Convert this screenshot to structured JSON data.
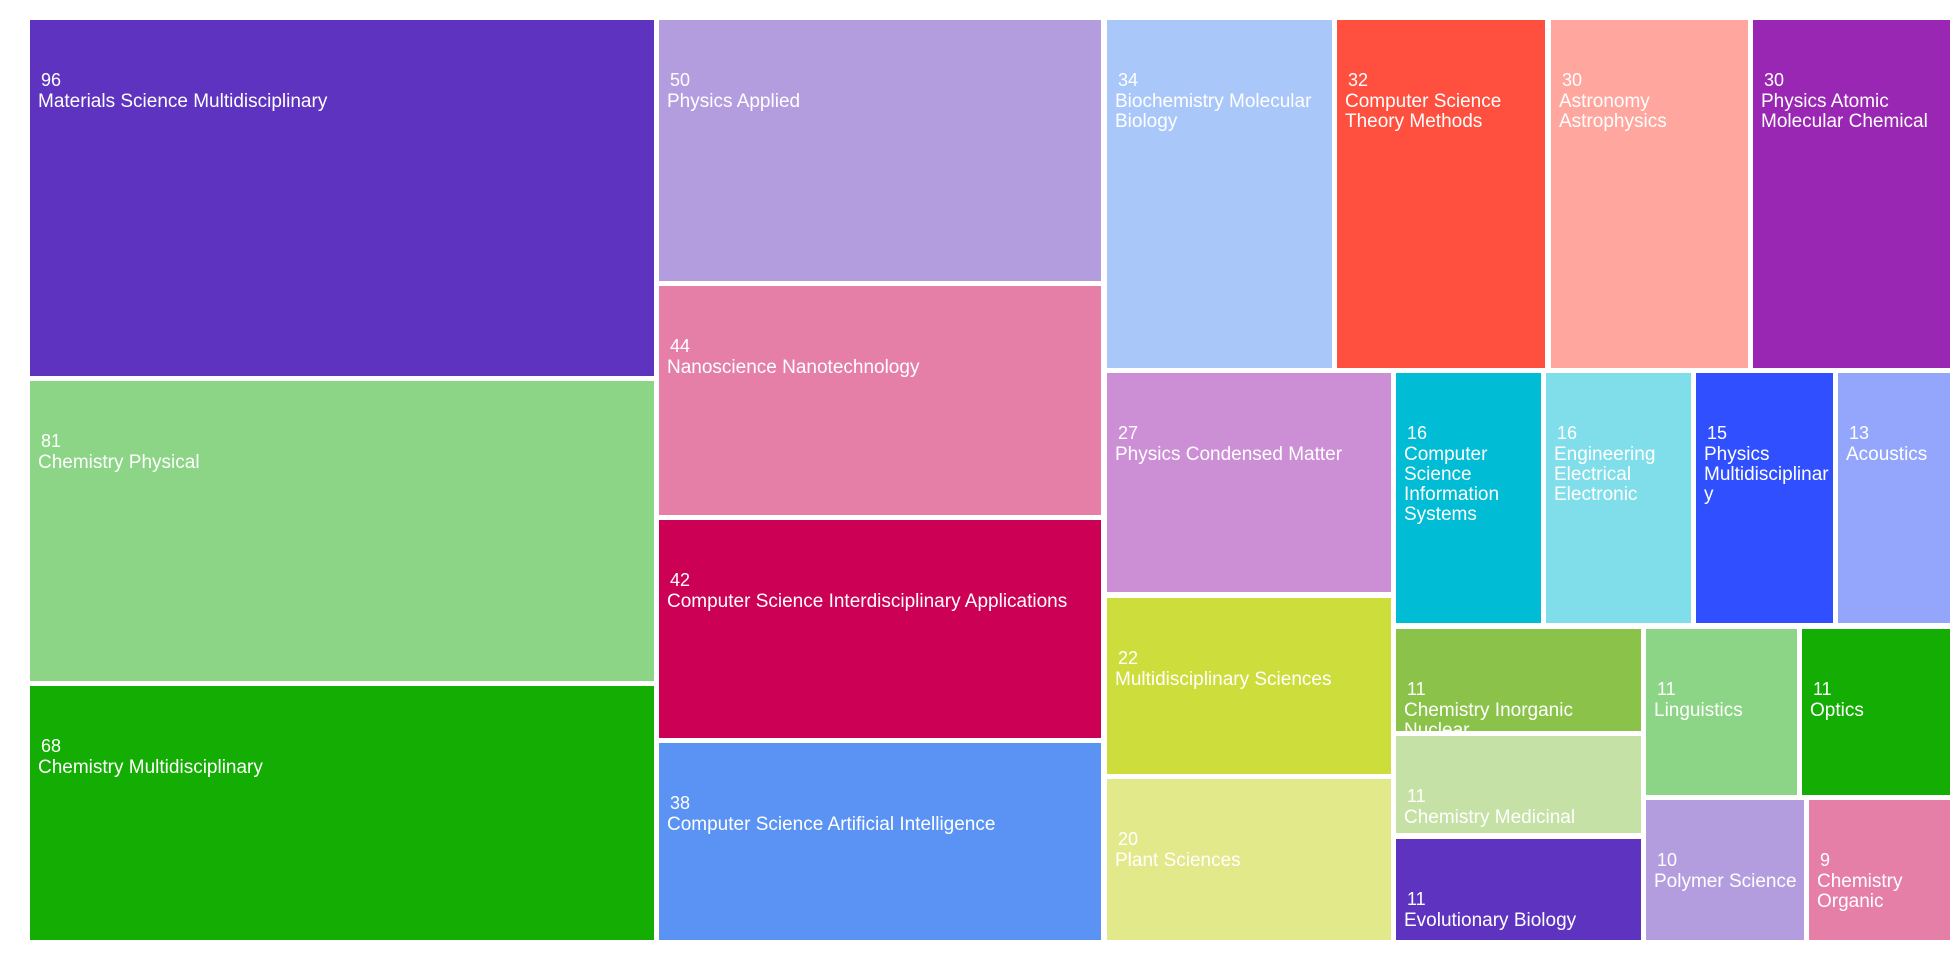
{
  "chart_data": {
    "type": "treemap",
    "items": [
      {
        "label": "Materials Science Multidisciplinary",
        "value": 96,
        "color": "#5e33bf"
      },
      {
        "label": "Chemistry Physical",
        "value": 81,
        "color": "#8cd586"
      },
      {
        "label": "Chemistry Multidisciplinary",
        "value": 68,
        "color": "#13ad03"
      },
      {
        "label": "Physics Applied",
        "value": 50,
        "color": "#b39ddf"
      },
      {
        "label": "Nanoscience Nanotechnology",
        "value": 44,
        "color": "#e57fa8"
      },
      {
        "label": "Computer Science Interdisciplinary Applications",
        "value": 42,
        "color": "#cc0055"
      },
      {
        "label": "Computer Science Artificial Intelligence",
        "value": 38,
        "color": "#5a93f3"
      },
      {
        "label": "Biochemistry Molecular Biology",
        "value": 34,
        "color": "#a9c7f9"
      },
      {
        "label": "Computer Science Theory Methods",
        "value": 32,
        "color": "#ff4f3f"
      },
      {
        "label": "Astronomy Astrophysics",
        "value": 30,
        "color": "#ffa69e"
      },
      {
        "label": "Physics Atomic Molecular Chemical",
        "value": 30,
        "color": "#9a27b3"
      },
      {
        "label": "Physics Condensed Matter",
        "value": 27,
        "color": "#cc8fd5"
      },
      {
        "label": "Multidisciplinary Sciences",
        "value": 22,
        "color": "#cddd3c"
      },
      {
        "label": "Plant Sciences",
        "value": 20,
        "color": "#e2e98a"
      },
      {
        "label": "Computer Science Information Systems",
        "value": 16,
        "color": "#00bcd4"
      },
      {
        "label": "Engineering Electrical Electronic",
        "value": 16,
        "color": "#80deea"
      },
      {
        "label": "Physics Multidisciplinary",
        "value": 15,
        "color": "#304ffe"
      },
      {
        "label": "Acoustics",
        "value": 13,
        "color": "#93a6fb"
      },
      {
        "label": "Chemistry Inorganic Nuclear",
        "value": 11,
        "color": "#8bc34a"
      },
      {
        "label": "Chemistry Medicinal",
        "value": 11,
        "color": "#c5e1a5"
      },
      {
        "label": "Evolutionary Biology",
        "value": 11,
        "color": "#5e33bf"
      },
      {
        "label": "Linguistics",
        "value": 11,
        "color": "#8cd586"
      },
      {
        "label": "Optics",
        "value": 11,
        "color": "#13ad03"
      },
      {
        "label": "Polymer Science",
        "value": 10,
        "color": "#b39ddf"
      },
      {
        "label": "Chemistry Organic",
        "value": 9,
        "color": "#e57fa8"
      }
    ]
  }
}
